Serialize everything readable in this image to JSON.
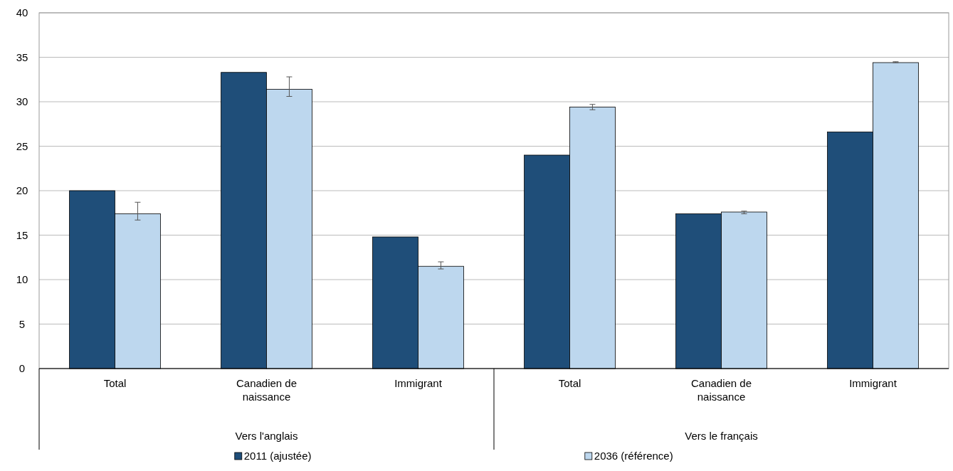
{
  "chart_data": {
    "type": "bar",
    "categories": [
      "Total",
      "Canadien de naissance",
      "Immigrant",
      "Total",
      "Canadien de naissance",
      "Immigrant"
    ],
    "series": [
      {
        "name": "2011 (ajustée)",
        "color": "#1f4e79",
        "values": [
          20.0,
          33.3,
          14.8,
          24.0,
          17.4,
          26.6
        ]
      },
      {
        "name": "2036 (référence)",
        "color": "#bdd7ee",
        "values": [
          17.4,
          31.4,
          11.5,
          29.4,
          17.6,
          34.4
        ],
        "errors": [
          [
            16.7,
            18.7
          ],
          [
            30.6,
            32.8
          ],
          [
            11.2,
            12.0
          ],
          [
            29.1,
            29.7
          ],
          [
            17.4,
            17.7
          ],
          [
            34.4,
            34.5
          ]
        ]
      }
    ],
    "annotations": [
      "Vers l'anglais",
      "Vers le français"
    ],
    "ylim": [
      0,
      40
    ],
    "yticks": [
      0,
      5,
      10,
      15,
      20,
      25,
      30,
      35,
      40
    ],
    "grid": "y",
    "legend": "bottom"
  }
}
